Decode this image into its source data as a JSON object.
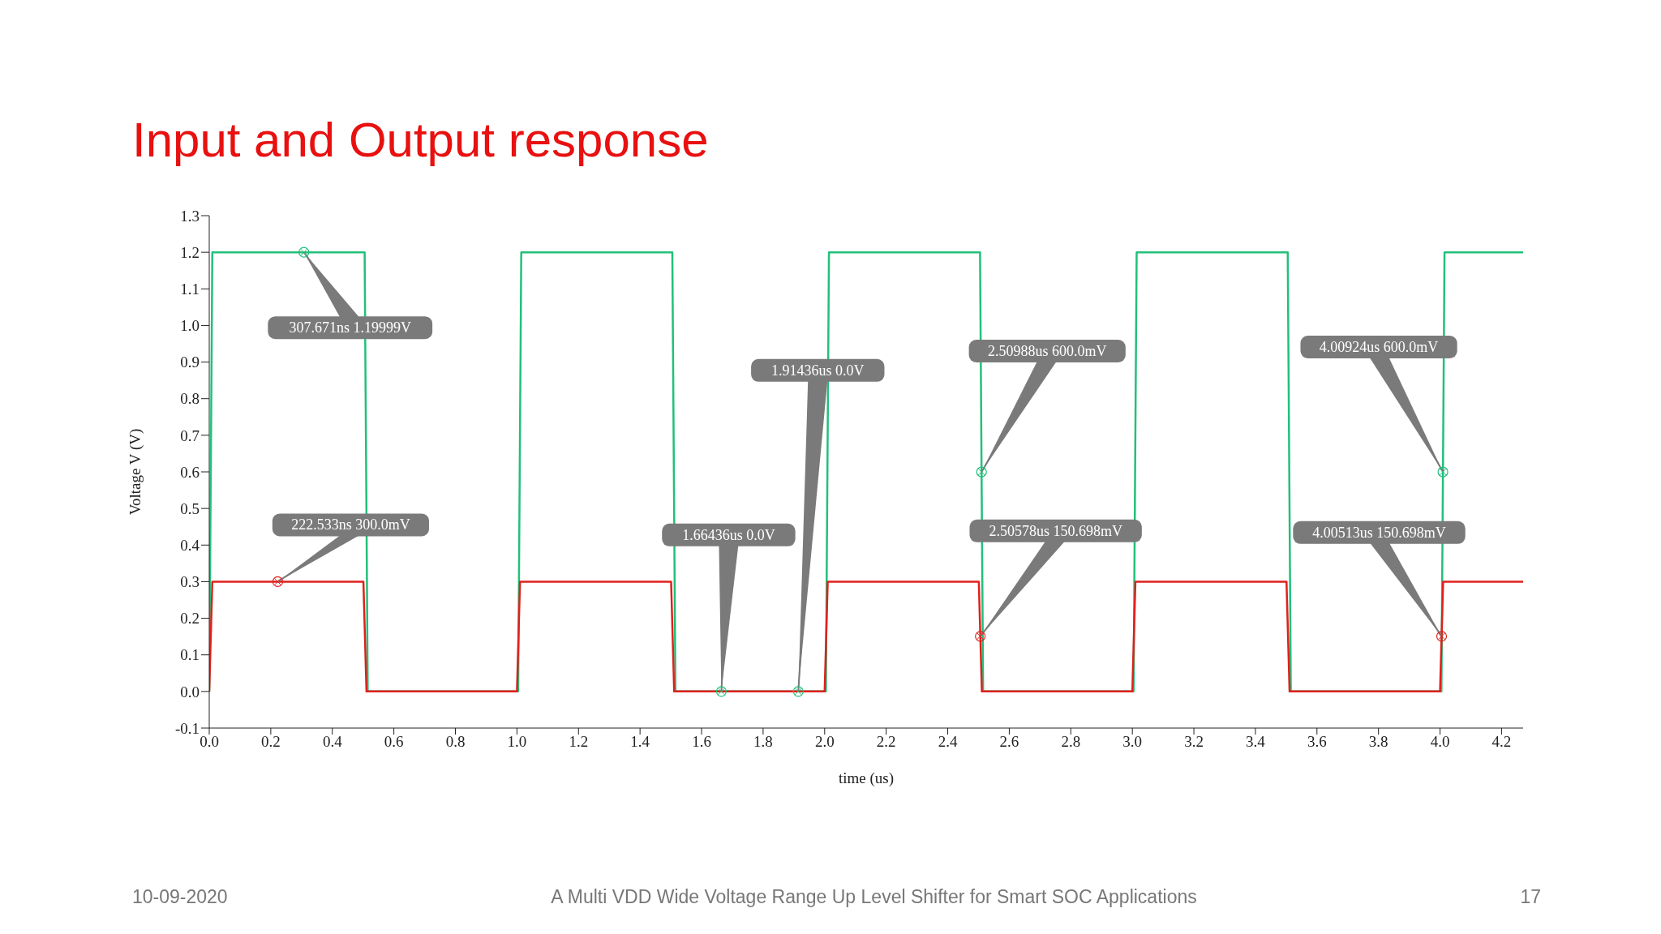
{
  "chart_data": {
    "type": "line",
    "title": "Input and Output response",
    "xlabel": "time (us)",
    "ylabel": "Voltage   V (V)",
    "series": [
      {
        "color": "#22c07a",
        "x": [
          0,
          0.01,
          0.505,
          0.515,
          1.004,
          1.014,
          1.505,
          1.515,
          2.004,
          2.014,
          2.505,
          2.515,
          3.004,
          3.014,
          3.505,
          3.515,
          4.0045,
          4.0145,
          4.27
        ],
        "values": [
          0,
          1.2,
          1.2,
          0,
          0,
          1.2,
          1.2,
          0,
          0,
          1.2,
          1.2,
          0,
          0,
          1.2,
          1.2,
          0,
          0,
          1.2,
          1.2
        ]
      },
      {
        "color": "#e0201c",
        "x": [
          0,
          0.01,
          0.501,
          0.511,
          1.0,
          1.01,
          1.501,
          1.511,
          2.0,
          2.01,
          2.501,
          2.511,
          3.0,
          3.01,
          3.501,
          3.511,
          4.0,
          4.01,
          4.27
        ],
        "values": [
          0,
          0.3,
          0.3,
          0,
          0,
          0.3,
          0.3,
          0,
          0,
          0.3,
          0.3,
          0,
          0,
          0.3,
          0.3,
          0,
          0,
          0.3,
          0.3
        ]
      }
    ],
    "xlim": [
      0,
      4.27
    ],
    "xticks": [
      {
        "value": 0,
        "label": "0.0"
      },
      {
        "value": 0.2,
        "label": "0.2"
      },
      {
        "value": 0.4,
        "label": "0.4"
      },
      {
        "value": 0.6,
        "label": "0.6"
      },
      {
        "value": 0.8,
        "label": "0.8"
      },
      {
        "value": 1,
        "label": "1.0"
      },
      {
        "value": 1.2,
        "label": "1.2"
      },
      {
        "value": 1.4,
        "label": "1.4"
      },
      {
        "value": 1.6,
        "label": "1.6"
      },
      {
        "value": 1.8,
        "label": "1.8"
      },
      {
        "value": 2,
        "label": "2.0"
      },
      {
        "value": 2.2,
        "label": "2.2"
      },
      {
        "value": 2.4,
        "label": "2.4"
      },
      {
        "value": 2.6,
        "label": "2.6"
      },
      {
        "value": 2.8,
        "label": "2.8"
      },
      {
        "value": 3,
        "label": "3.0"
      },
      {
        "value": 3.2,
        "label": "3.2"
      },
      {
        "value": 3.4,
        "label": "3.4"
      },
      {
        "value": 3.6,
        "label": "3.6"
      },
      {
        "value": 3.8,
        "label": "3.8"
      },
      {
        "value": 4,
        "label": "4.0"
      },
      {
        "value": 4.2,
        "label": "4.2"
      }
    ],
    "ylim": [
      -0.1,
      1.3
    ],
    "yticks": [
      -0.1,
      {
        "value": 0,
        "label": "0.0"
      },
      0.1,
      0.2,
      0.3,
      0.4,
      0.5,
      0.6,
      0.7,
      0.8,
      0.9,
      {
        "value": 1,
        "label": "1.0"
      },
      1.1,
      1.2,
      1.3
    ],
    "grid": false,
    "annotations": [
      {
        "text": "307.671ns 1.19999V",
        "x": 0.307671,
        "y": 1.19999
      },
      {
        "text": "222.533ns 300.0mV",
        "x": 0.222533,
        "y": 0.3
      },
      {
        "text": "1.66436us 0.0V",
        "x": 1.66436,
        "y": 0
      },
      {
        "text": "1.91436us 0.0V",
        "x": 1.91436,
        "y": 0
      },
      {
        "text": "2.50988us 600.0mV",
        "x": 2.50988,
        "y": 0.6
      },
      {
        "text": "2.50578us 150.698mV",
        "x": 2.50578,
        "y": 0.150698
      },
      {
        "text": "4.00924us 600.0mV",
        "x": 4.00924,
        "y": 0.6
      },
      {
        "text": "4.00513us 150.698mV",
        "x": 4.00513,
        "y": 0.150698
      },
      "10-09-2020",
      "A Multi VDD Wide Voltage Range Up Level Shifter for Smart SOC Applications",
      "17"
    ]
  }
}
